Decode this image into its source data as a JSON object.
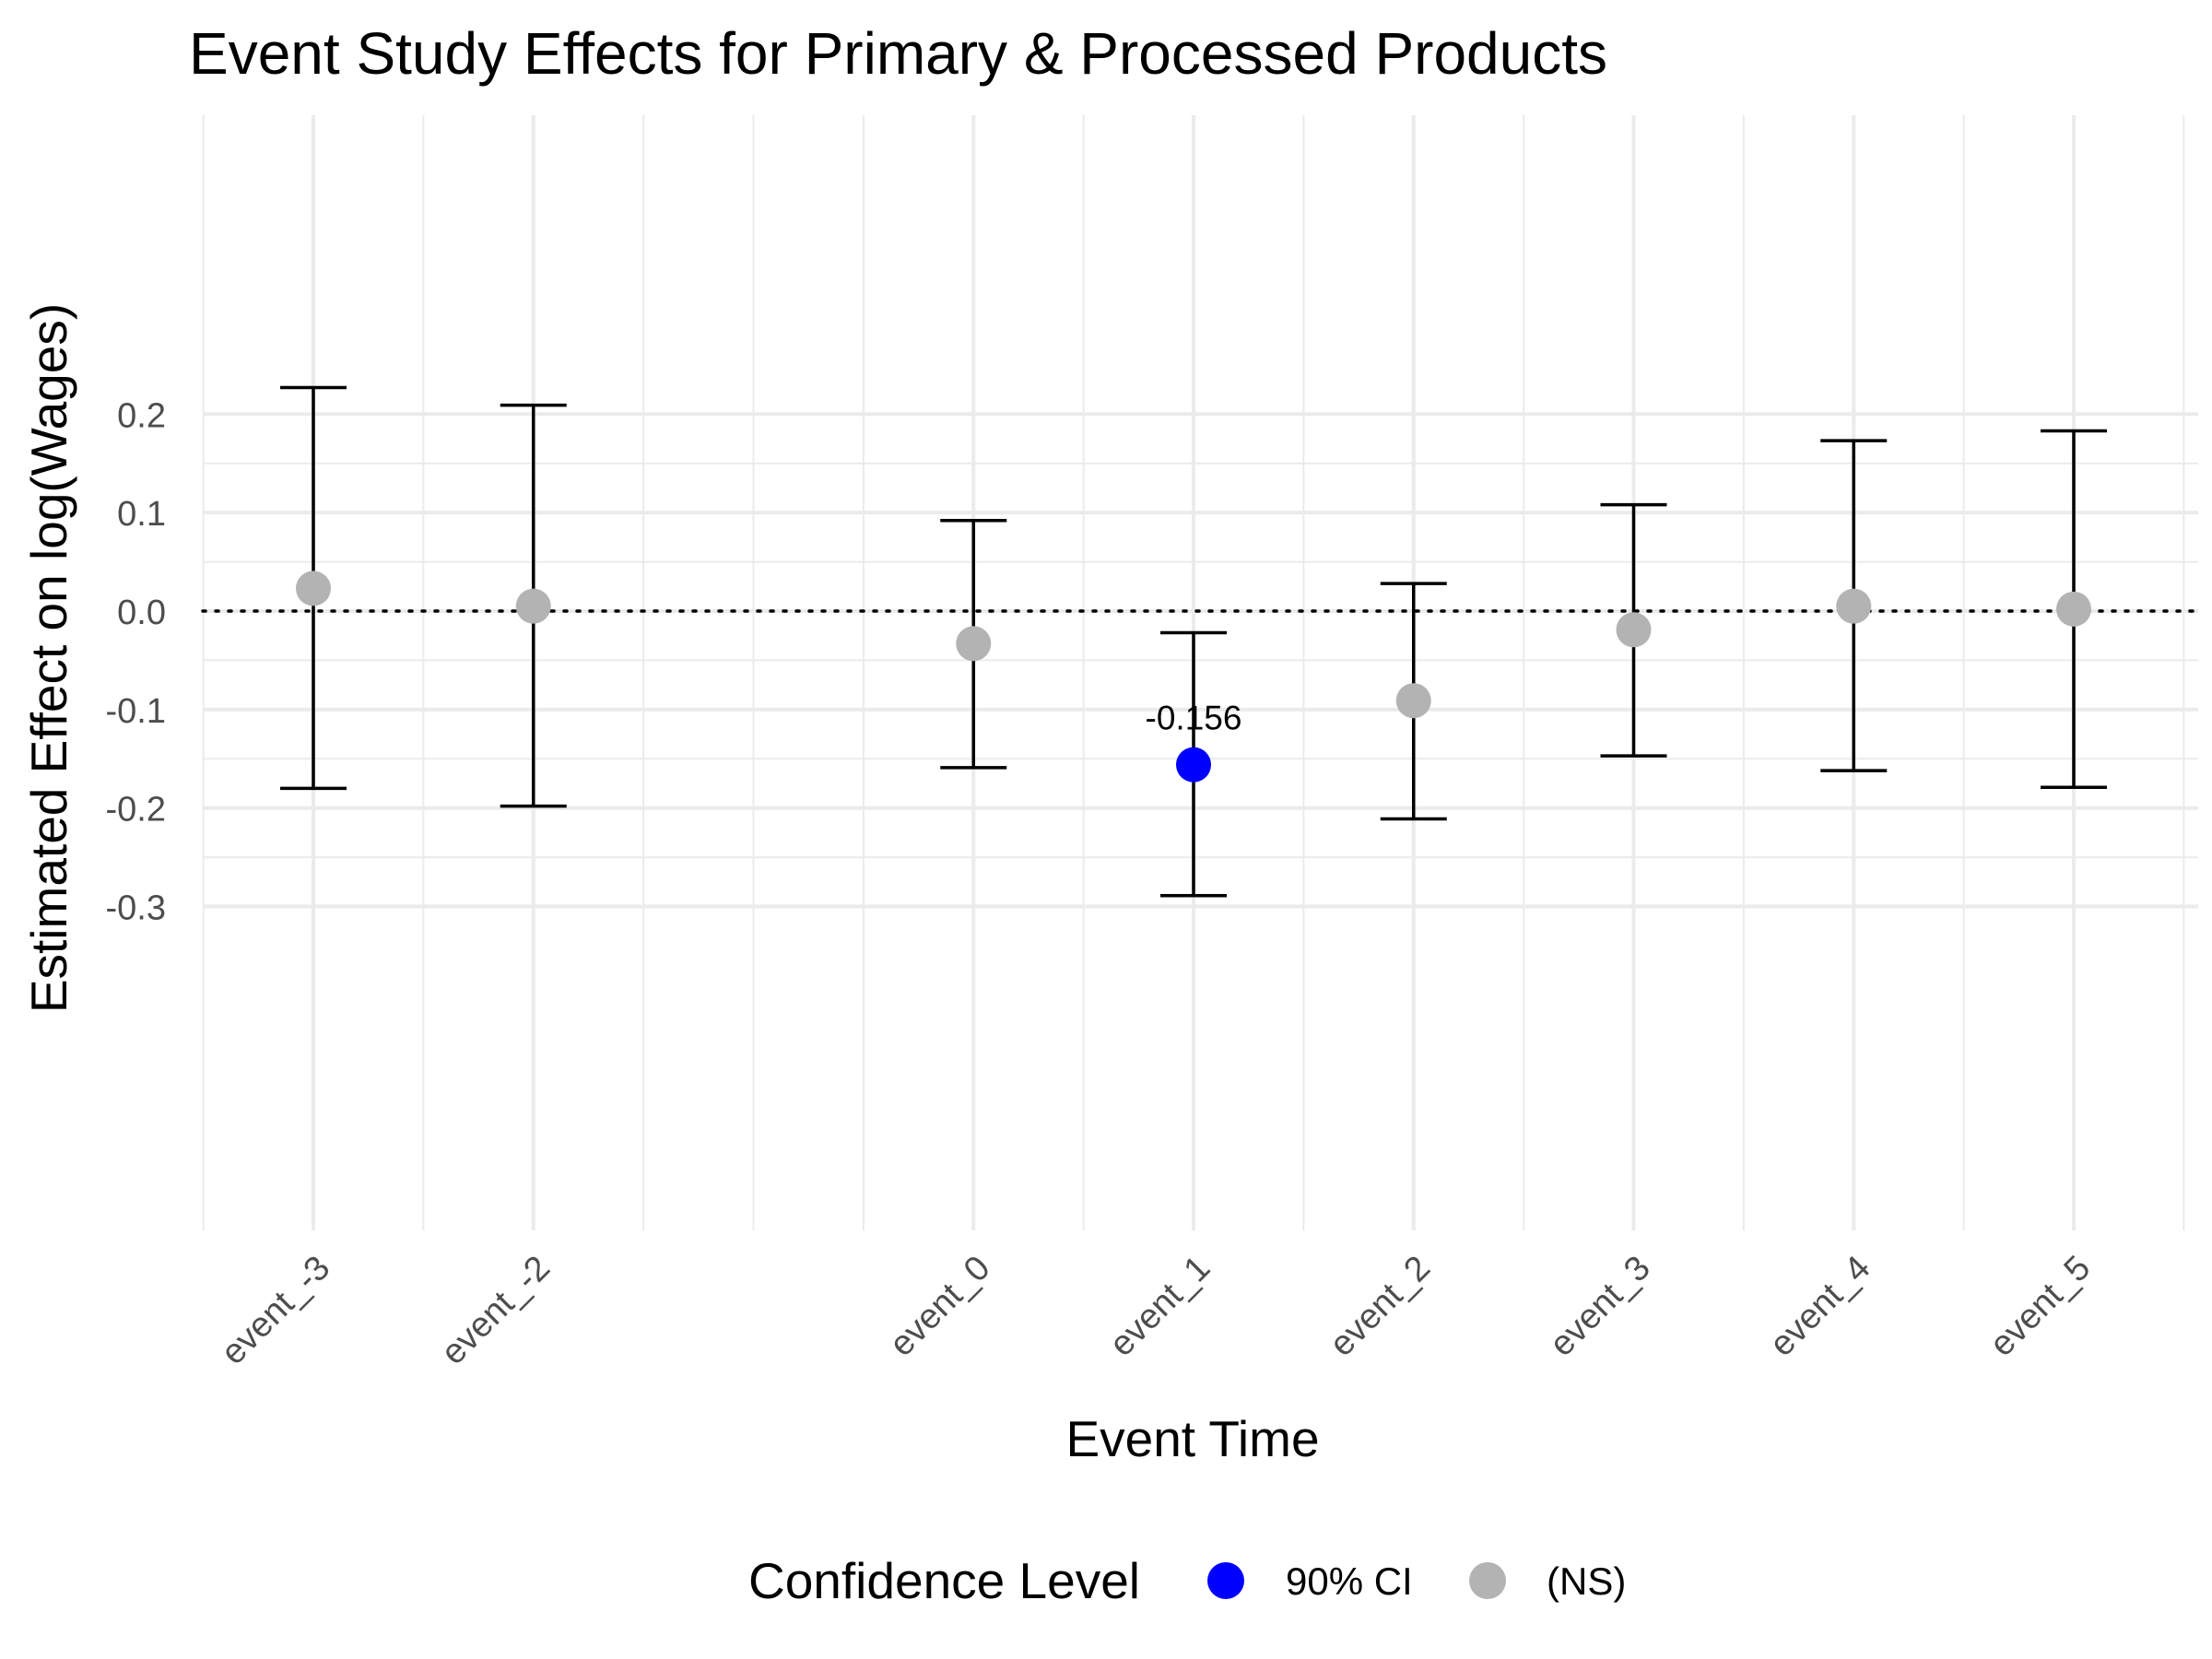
{
  "chart_data": {
    "type": "scatter",
    "title": "Event Study Effects for Primary & Processed Products",
    "xlabel": "Event Time",
    "ylabel": "Estimated Effect on log(Wages)",
    "ylim": [
      -0.31,
      0.25
    ],
    "y_ticks": [
      "0.2",
      "0.1",
      "0.0",
      "-0.1",
      "-0.2",
      "-0.3"
    ],
    "x": [
      "event_-3",
      "event_-2",
      "event_0",
      "event_1",
      "event_2",
      "event_3",
      "event_4",
      "event_5"
    ],
    "x_order": [
      -3,
      -2,
      0,
      1,
      2,
      3,
      4,
      5
    ],
    "estimate": [
      0.023,
      0.005,
      -0.033,
      -0.156,
      -0.091,
      -0.019,
      0.005,
      0.002
    ],
    "ci_lower": [
      -0.18,
      -0.198,
      -0.159,
      -0.289,
      -0.211,
      -0.147,
      -0.162,
      -0.179
    ],
    "ci_upper": [
      0.227,
      0.209,
      0.092,
      -0.022,
      0.028,
      0.108,
      0.173,
      0.183
    ],
    "significance": [
      "(NS)",
      "(NS)",
      "(NS)",
      "90% CI",
      "(NS)",
      "(NS)",
      "(NS)",
      "(NS)"
    ],
    "point_labels": [
      "",
      "",
      "",
      "-0.156",
      "",
      "",
      "",
      ""
    ],
    "reference_line": 0,
    "reference_line_style": "dotted",
    "grid": true,
    "legend": {
      "title": "Confidence Level",
      "position": "bottom",
      "entries": [
        {
          "label": "90% CI",
          "color": "#0000ff"
        },
        {
          "label": "(NS)",
          "color": "#b3b3b3"
        }
      ]
    },
    "colors": {
      "significant": "#0000ff",
      "not_significant": "#b3b3b3",
      "errorbar": "#000000",
      "grid": "#ebebeb"
    }
  }
}
